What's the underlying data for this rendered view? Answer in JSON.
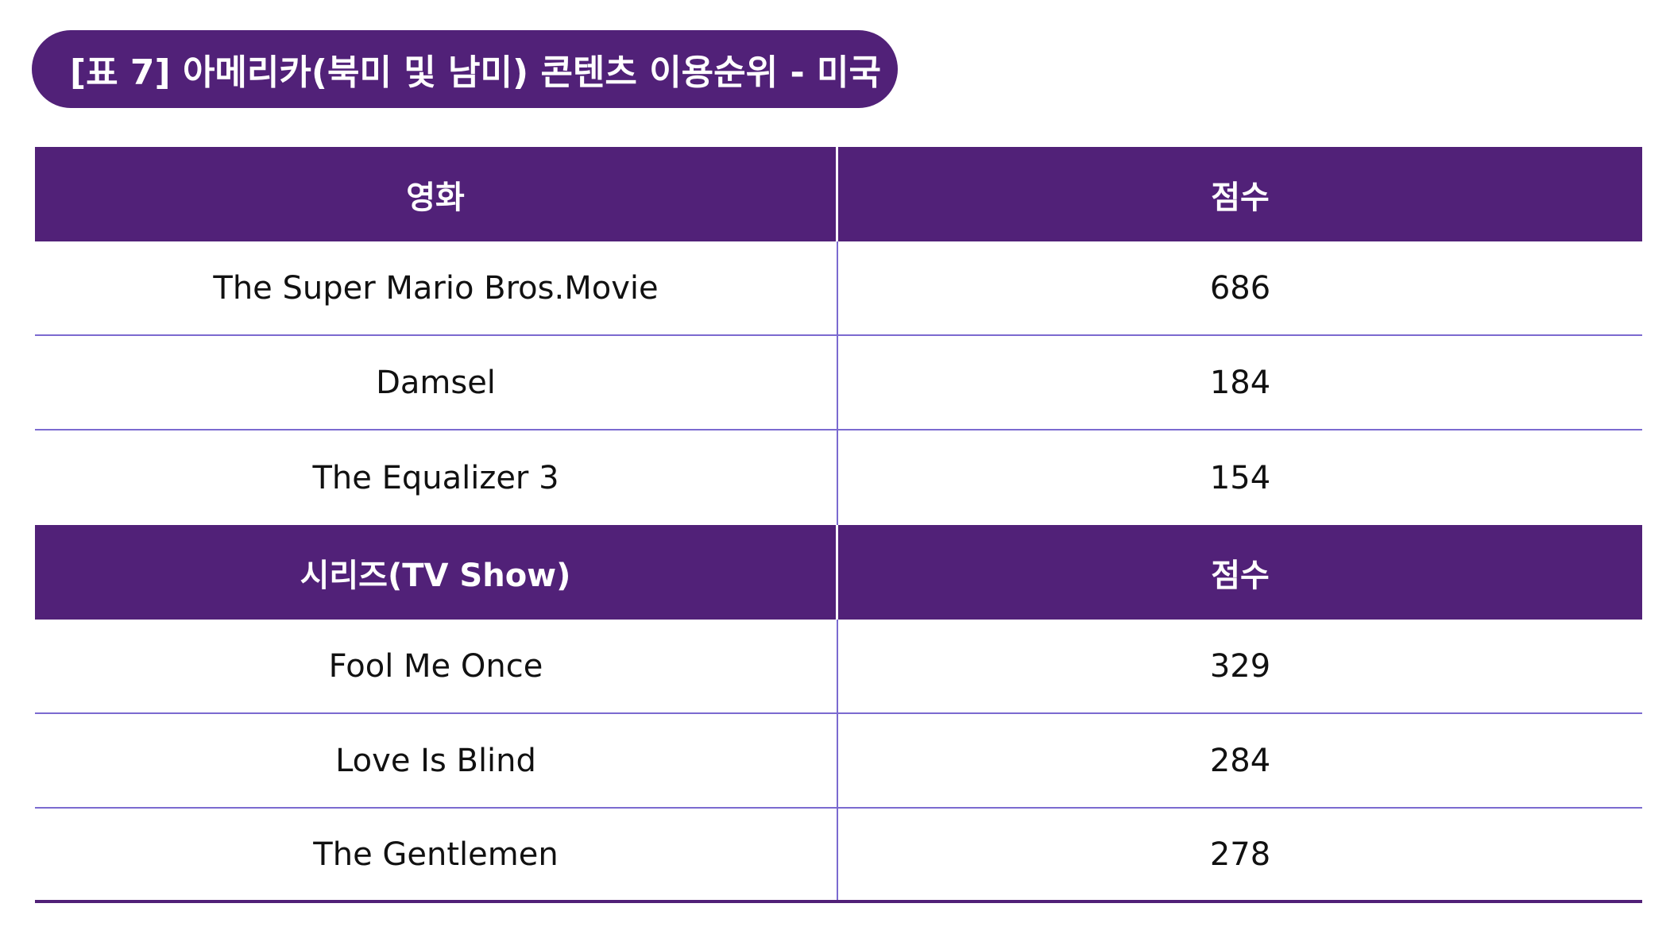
{
  "title": "[표 7] 아메리카(북미 및 남미) 콘텐츠 이용순위 - 미국",
  "colors": {
    "header_bg": "#512178",
    "divider": "#7b6ad0",
    "header_text": "#ffffff",
    "body_text": "#111111"
  },
  "movies": {
    "header": {
      "name": "영화",
      "score": "점수"
    },
    "rows": [
      {
        "name": "The Super Mario Bros.Movie",
        "score": "686"
      },
      {
        "name": "Damsel",
        "score": "184"
      },
      {
        "name": "The Equalizer 3",
        "score": "154"
      }
    ]
  },
  "series": {
    "header": {
      "name": "시리즈(TV Show)",
      "score": "점수"
    },
    "rows": [
      {
        "name": "Fool Me Once",
        "score": "329"
      },
      {
        "name": "Love Is Blind",
        "score": "284"
      },
      {
        "name": "The Gentlemen",
        "score": "278"
      }
    ]
  }
}
